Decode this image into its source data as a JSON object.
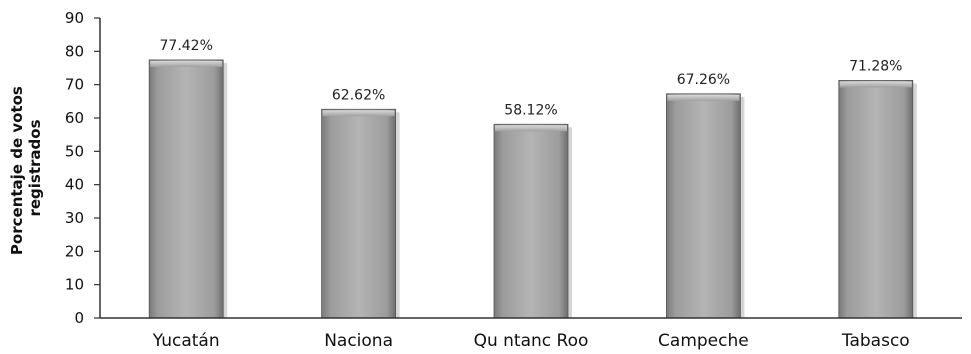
{
  "chart_data": {
    "type": "bar",
    "categories": [
      "Yucatán",
      "Naciona",
      "Qu ntanc Roo",
      "Campeche",
      "Tabasco"
    ],
    "values": [
      77.42,
      62.62,
      58.12,
      67.26,
      71.28
    ],
    "data_labels": [
      "77.42%",
      "62.62%",
      "58.12%",
      "67.26%",
      "71.28%"
    ],
    "ylabel_lines": [
      "Porcentaje de votos",
      "registrados"
    ],
    "ylim": [
      0,
      90
    ],
    "yticks": [
      0,
      10,
      20,
      30,
      40,
      50,
      60,
      70,
      80,
      90
    ],
    "grid": false,
    "legend": "none",
    "bar_color": "#a9a9a9"
  }
}
